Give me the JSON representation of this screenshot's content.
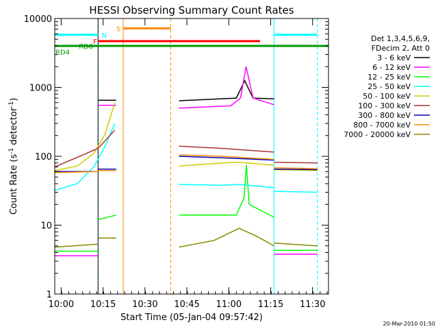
{
  "chart_data": {
    "type": "line",
    "title": "HESSI Observing Summary Count Rates",
    "xlabel": "Start Time (05-Jan-04 09:57:42)",
    "ylabel_main": "Count Rate (s",
    "ylabel_sup": "-1",
    "ylabel_mid": " detector",
    "ylabel_end": ")",
    "yscale": "log",
    "ylim": [
      1,
      10000
    ],
    "xlim_minutes": [
      0,
      98
    ],
    "x_ticks": [
      {
        "m": 2.3,
        "label": "10:00"
      },
      {
        "m": 17.3,
        "label": "10:15"
      },
      {
        "m": 32.3,
        "label": "10:30"
      },
      {
        "m": 47.3,
        "label": "10:45"
      },
      {
        "m": 62.3,
        "label": "11:00"
      },
      {
        "m": 77.3,
        "label": "11:15"
      },
      {
        "m": 92.3,
        "label": "11:30"
      }
    ],
    "y_ticks": [
      {
        "v": 1,
        "label": "1"
      },
      {
        "v": 10,
        "label": "10"
      },
      {
        "v": 100,
        "label": "100"
      },
      {
        "v": 1000,
        "label": "1000"
      },
      {
        "v": 10000,
        "label": "10000"
      }
    ],
    "legend_header": [
      "Det 1,3,4,5,6,9,",
      "FDecim 2, Att 0"
    ],
    "series": [
      {
        "name": "3 - 6 keV",
        "color": "#000000",
        "segments": [
          {
            "x": [
              15.5,
              22
            ],
            "y": [
              650,
              650
            ]
          },
          {
            "x": [
              44.5,
              65,
              68,
              71,
              78.5
            ],
            "y": [
              640,
              700,
              1250,
              700,
              680
            ]
          }
        ]
      },
      {
        "name": "6 - 12 keV",
        "color": "#ff00ff",
        "segments": [
          {
            "x": [
              0,
              15.5
            ],
            "y": [
              3.6,
              3.6
            ]
          },
          {
            "x": [
              15.5,
              22
            ],
            "y": [
              550,
              550
            ]
          },
          {
            "x": [
              44.5,
              63,
              66.5,
              68.5,
              71,
              78.5
            ],
            "y": [
              500,
              540,
              700,
              2000,
              700,
              560
            ]
          },
          {
            "x": [
              78.5,
              94
            ],
            "y": [
              3.8,
              3.8
            ]
          }
        ]
      },
      {
        "name": "12 - 25 keV",
        "color": "#00ff00",
        "segments": [
          {
            "x": [
              0,
              15.5
            ],
            "y": [
              4.2,
              4.2
            ]
          },
          {
            "x": [
              15.5,
              22
            ],
            "y": [
              12,
              14
            ]
          },
          {
            "x": [
              44.5,
              65,
              67.8,
              68.6,
              69.6,
              78.5
            ],
            "y": [
              14,
              14,
              25,
              75,
              20,
              13
            ]
          },
          {
            "x": [
              78.5,
              94
            ],
            "y": [
              4.3,
              4.3
            ]
          }
        ]
      },
      {
        "name": "25 - 50 keV",
        "color": "#00ffff",
        "segments": [
          {
            "x": [
              0,
              8,
              14,
              18,
              21.5
            ],
            "y": [
              32,
              40,
              70,
              140,
              300
            ]
          },
          {
            "x": [
              44.5,
              60,
              66,
              72,
              78.5
            ],
            "y": [
              39,
              38,
              39,
              37,
              35
            ]
          },
          {
            "x": [
              78.5,
              94
            ],
            "y": [
              31,
              30
            ]
          }
        ]
      },
      {
        "name": "50 - 100 keV",
        "color": "#cccc00",
        "segments": [
          {
            "x": [
              0,
              8,
              14,
              18,
              21.5
            ],
            "y": [
              62,
              72,
              110,
              210,
              600
            ]
          },
          {
            "x": [
              44.5,
              60,
              66,
              72,
              78.5
            ],
            "y": [
              72,
              80,
              82,
              78,
              74
            ]
          },
          {
            "x": [
              78.5,
              94
            ],
            "y": [
              64,
              62
            ]
          }
        ]
      },
      {
        "name": "100 - 300 keV",
        "color": "#aa3333",
        "segments": [
          {
            "x": [
              0,
              15.5,
              21.5
            ],
            "y": [
              70,
              130,
              240
            ]
          },
          {
            "x": [
              44.5,
              60,
              78.5
            ],
            "y": [
              140,
              130,
              115
            ]
          },
          {
            "x": [
              78.5,
              94
            ],
            "y": [
              82,
              80
            ]
          }
        ]
      },
      {
        "name": "300 - 800 keV",
        "color": "#0000aa",
        "segments": [
          {
            "x": [
              0,
              15.5
            ],
            "y": [
              60,
              60
            ]
          },
          {
            "x": [
              15.5,
              22
            ],
            "y": [
              65,
              65
            ]
          },
          {
            "x": [
              44.5,
              60,
              78.5
            ],
            "y": [
              100,
              95,
              88
            ]
          },
          {
            "x": [
              78.5,
              94
            ],
            "y": [
              65,
              64
            ]
          }
        ]
      },
      {
        "name": "800 - 7000 keV",
        "color": "#ff8800",
        "segments": [
          {
            "x": [
              0,
              15.5
            ],
            "y": [
              58,
              60
            ]
          },
          {
            "x": [
              15.5,
              22
            ],
            "y": [
              62,
              62
            ]
          },
          {
            "x": [
              44.5,
              60,
              78.5
            ],
            "y": [
              105,
              100,
              90
            ]
          },
          {
            "x": [
              78.5,
              94
            ],
            "y": [
              68,
              66
            ]
          }
        ]
      },
      {
        "name": "7000 - 20000 keV",
        "color": "#888800",
        "segments": [
          {
            "x": [
              0,
              15.5
            ],
            "y": [
              4.8,
              5.3
            ]
          },
          {
            "x": [
              15.5,
              22
            ],
            "y": [
              6.5,
              6.5
            ]
          },
          {
            "x": [
              44.5,
              57,
              66,
              72,
              78.5
            ],
            "y": [
              4.8,
              6,
              9,
              7,
              5
            ]
          },
          {
            "x": [
              78.5,
              94
            ],
            "y": [
              5.5,
              5
            ]
          }
        ]
      }
    ],
    "flag_bars": [
      {
        "label": "N",
        "color": "#00ffff",
        "x": [
          0,
          15.5
        ],
        "y": 5800,
        "label_x": 16.6
      },
      {
        "label": "N",
        "color": "#00ffff",
        "x": [
          78.5,
          94
        ],
        "y": 5800,
        "label_x": null
      },
      {
        "label": "S",
        "color": "#ff8800",
        "x": [
          24.5,
          41.5
        ],
        "y": 7200,
        "label_x": 21.8
      },
      {
        "label": "F",
        "color": "#ff0000",
        "x": [
          15.5,
          73.5
        ],
        "y": 4700,
        "label_x": 13.5
      },
      {
        "label": "RD0",
        "color": "#009900",
        "x": [
          0,
          98
        ],
        "y": 4000,
        "label_x": 8.4
      },
      {
        "label": "RD4",
        "color": "#009900",
        "x": null,
        "y": 3300,
        "label_x": 0
      }
    ],
    "vertical_lines": [
      {
        "m": 0,
        "color": "#00ffff",
        "style": "solid"
      },
      {
        "m": 15.5,
        "color": "#00ffff",
        "style": "dashed"
      },
      {
        "m": 15.5,
        "color": "#000000",
        "style": "solid"
      },
      {
        "m": 24.5,
        "color": "#ff8800",
        "style": "solid"
      },
      {
        "m": 41.5,
        "color": "#ff8800",
        "style": "dashed"
      },
      {
        "m": 78.5,
        "color": "#00ffff",
        "style": "solid"
      },
      {
        "m": 94,
        "color": "#00ffff",
        "style": "dashed"
      }
    ],
    "grid": false,
    "legend_placement": "right"
  },
  "footer_timestamp": "20-Mar-2010 01:50"
}
